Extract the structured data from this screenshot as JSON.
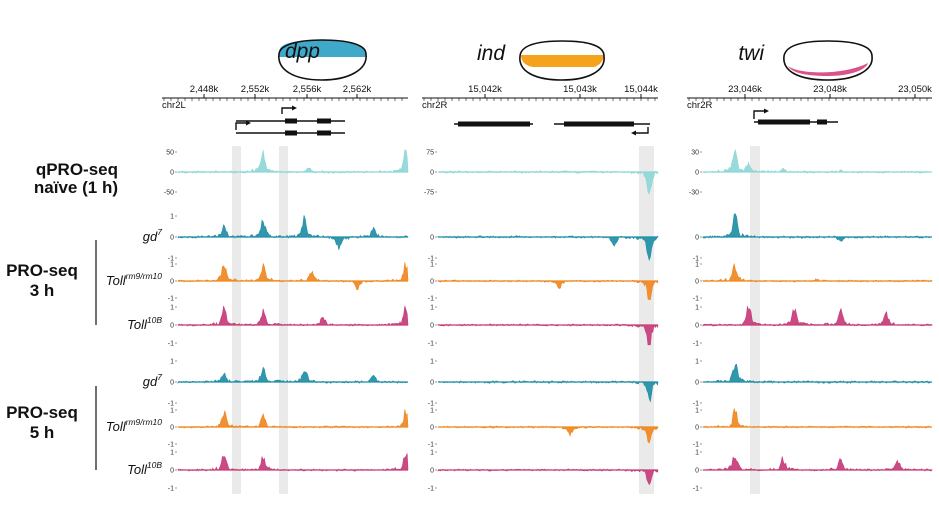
{
  "colors": {
    "cyan_light": "#8fd6d6",
    "teal": "#1f8ea6",
    "orange": "#f0871e",
    "magenta": "#c53c7a",
    "embryo_blue": "#40a8c8",
    "embryo_orange": "#f5a21c",
    "embryo_pink": "#d9548a",
    "highlight": "#d8d8d8"
  },
  "chart_data": {
    "type": "area",
    "title": "",
    "loci": [
      {
        "gene": "dpp",
        "chromosome": "chr2L",
        "axis_ticks": [
          "2,448k",
          "2,552k",
          "2,556k",
          "2,562k"
        ],
        "embryo_expression": "dorsal"
      },
      {
        "gene": "ind",
        "chromosome": "chr2R",
        "axis_ticks": [
          "15,042k",
          "15,043k",
          "15,044k"
        ],
        "embryo_expression": "lateral"
      },
      {
        "gene": "twi",
        "chromosome": "chr2R",
        "axis_ticks": [
          "23,046k",
          "23,048k",
          "23,050k"
        ],
        "embryo_expression": "ventral"
      }
    ],
    "groups": [
      {
        "label_line1": "qPRO-seq",
        "label_line2": "naïve (1 h)",
        "tracks": [
          {
            "condition": "",
            "color_key": "cyan_light",
            "yticks_by_locus": [
              [
                "50",
                "0",
                "-50"
              ],
              [
                "75",
                "0",
                "-75"
              ],
              [
                "30",
                "0",
                "-30"
              ]
            ],
            "peaks_by_locus": [
              [
                [
                  0.37,
                  0.9
                ],
                [
                  0.57,
                  0.2
                ],
                [
                  0.99,
                  1.0
                ]
              ],
              [
                [
                  0.96,
                  -1.0
                ]
              ],
              [
                [
                  0.14,
                  1.0
                ],
                [
                  0.2,
                  0.35
                ],
                [
                  0.35,
                  0.15
                ],
                [
                  0.6,
                  0.08
                ]
              ]
            ]
          }
        ]
      },
      {
        "label_line1": "PRO-seq",
        "label_line2": "3 h",
        "tracks": [
          {
            "condition": "gd",
            "sup": "7",
            "color_key": "teal",
            "yticks_by_locus": [
              [
                "1",
                "0",
                "-1"
              ],
              [
                "",
                "0",
                "-1"
              ],
              [
                "",
                "0",
                "-1"
              ]
            ],
            "peaks_by_locus": [
              [
                [
                  0.2,
                  0.5
                ],
                [
                  0.37,
                  0.7
                ],
                [
                  0.55,
                  0.8
                ],
                [
                  0.7,
                  -0.5
                ],
                [
                  0.85,
                  0.4
                ]
              ],
              [
                [
                  0.8,
                  -0.4
                ],
                [
                  0.96,
                  -1.0
                ]
              ],
              [
                [
                  0.14,
                  1.0
                ],
                [
                  0.6,
                  -0.15
                ]
              ]
            ]
          },
          {
            "condition": "Toll",
            "sup": "rm9/rm10",
            "color_key": "orange",
            "yticks_by_locus": [
              [
                "1",
                "0",
                "-1"
              ],
              [
                "1",
                "0",
                "-1"
              ],
              [
                "1",
                "0",
                "-1"
              ]
            ],
            "peaks_by_locus": [
              [
                [
                  0.2,
                  0.9
                ],
                [
                  0.37,
                  0.8
                ],
                [
                  0.58,
                  0.5
                ],
                [
                  0.78,
                  -0.4
                ],
                [
                  0.99,
                  0.9
                ]
              ],
              [
                [
                  0.55,
                  -0.4
                ],
                [
                  0.96,
                  -1.0
                ]
              ],
              [
                [
                  0.14,
                  0.9
                ],
                [
                  0.5,
                  0.1
                ]
              ]
            ]
          },
          {
            "condition": "Toll",
            "sup": "10B",
            "color_key": "magenta",
            "yticks_by_locus": [
              [
                "1",
                "0",
                "-1"
              ],
              [
                "1",
                "0",
                "-1"
              ],
              [
                "1",
                "0",
                "-1"
              ]
            ],
            "peaks_by_locus": [
              [
                [
                  0.2,
                  0.8
                ],
                [
                  0.37,
                  0.7
                ],
                [
                  0.63,
                  0.4
                ],
                [
                  0.99,
                  0.8
                ]
              ],
              [
                [
                  0.96,
                  -1.0
                ]
              ],
              [
                [
                  0.2,
                  1.0
                ],
                [
                  0.4,
                  0.9
                ],
                [
                  0.6,
                  0.8
                ],
                [
                  0.8,
                  0.6
                ]
              ]
            ]
          }
        ]
      },
      {
        "label_line1": "PRO-seq",
        "label_line2": "5 h",
        "tracks": [
          {
            "condition": "gd",
            "sup": "7",
            "color_key": "teal",
            "yticks_by_locus": [
              [
                "1",
                "0",
                "-1"
              ],
              [
                "1",
                "0",
                "-1"
              ],
              [
                "1",
                "0",
                "-1"
              ]
            ],
            "peaks_by_locus": [
              [
                [
                  0.2,
                  0.4
                ],
                [
                  0.37,
                  0.6
                ],
                [
                  0.55,
                  0.6
                ],
                [
                  0.85,
                  0.3
                ]
              ],
              [
                [
                  0.96,
                  -0.8
                ]
              ],
              [
                [
                  0.14,
                  0.9
                ]
              ]
            ]
          },
          {
            "condition": "Toll",
            "sup": "rm9/rm10",
            "color_key": "orange",
            "yticks_by_locus": [
              [
                "1",
                "0",
                "-1"
              ],
              [
                "1",
                "0",
                "-1"
              ],
              [
                "1",
                "0",
                "-1"
              ]
            ],
            "peaks_by_locus": [
              [
                [
                  0.2,
                  0.8
                ],
                [
                  0.37,
                  0.6
                ],
                [
                  0.99,
                  0.8
                ]
              ],
              [
                [
                  0.6,
                  -0.4
                ],
                [
                  0.96,
                  -1.0
                ]
              ],
              [
                [
                  0.14,
                  0.8
                ]
              ]
            ]
          },
          {
            "condition": "Toll",
            "sup": "10B",
            "color_key": "magenta",
            "yticks_by_locus": [
              [
                "1",
                "0",
                "-1"
              ],
              [
                "1",
                "0",
                "-1"
              ],
              [
                "1",
                "0",
                "-1"
              ]
            ],
            "peaks_by_locus": [
              [
                [
                  0.2,
                  0.7
                ],
                [
                  0.37,
                  0.6
                ],
                [
                  0.99,
                  0.8
                ]
              ],
              [
                [
                  0.96,
                  -0.8
                ]
              ],
              [
                [
                  0.14,
                  0.9
                ],
                [
                  0.35,
                  0.6
                ],
                [
                  0.6,
                  0.5
                ],
                [
                  0.85,
                  0.4
                ]
              ]
            ]
          }
        ]
      }
    ]
  }
}
